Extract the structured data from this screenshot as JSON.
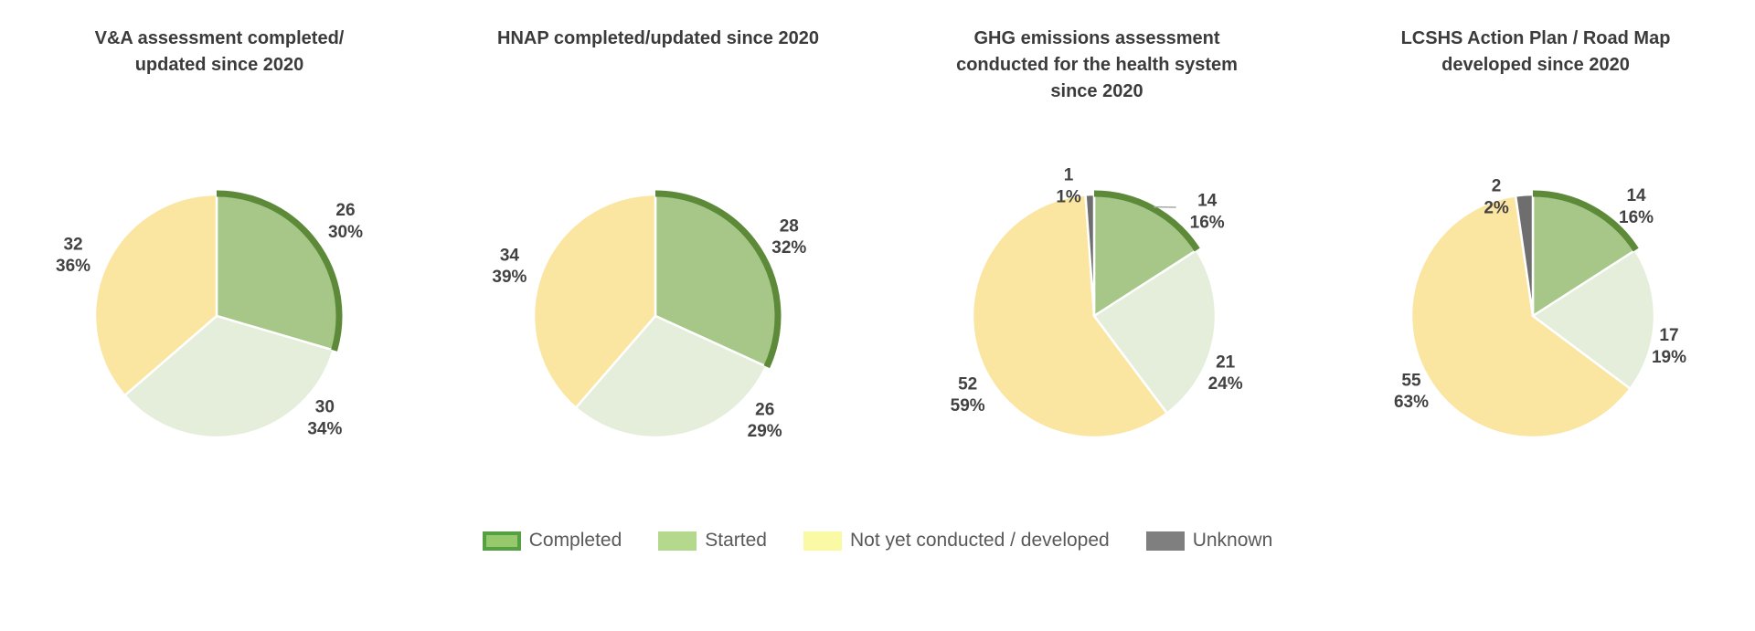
{
  "page": {
    "background_color": "#ffffff"
  },
  "colors": {
    "completed_fill": "#a6c787",
    "completed_arc_stroke": "#5d8a38",
    "started_fill": "#e4eeda",
    "notyet_fill": "#fae5a1",
    "unknown_fill": "#6e6e6e",
    "slice_separator": "#ffffff",
    "label_text": "#424242",
    "title_text": "#3b3b3b",
    "leader_line": "#a8a8a8"
  },
  "legend": {
    "items": [
      {
        "label": "Completed",
        "swatch_fill": "#96c96b",
        "swatch_border": "#55a042"
      },
      {
        "label": "Started",
        "swatch_fill": "#b5d98c"
      },
      {
        "label": "Not yet conducted / developed",
        "swatch_fill": "#fbfaa4"
      },
      {
        "label": "Unknown",
        "swatch_fill": "#7f7f7f"
      }
    ]
  },
  "chart_data": [
    {
      "type": "pie",
      "title": "V&A assessment completed/\nupdated since 2020",
      "start_angle_deg": 0,
      "direction": "clockwise",
      "slices": [
        {
          "category": "Completed",
          "key": "completed",
          "value": 26,
          "pct_label": "30%",
          "label_pos": [
            1.06,
            -0.8
          ],
          "highlight_arc": true
        },
        {
          "category": "Started",
          "key": "started",
          "value": 30,
          "pct_label": "34%",
          "label_pos": [
            0.89,
            0.82
          ]
        },
        {
          "category": "Not yet conducted / developed",
          "key": "notyet",
          "value": 32,
          "pct_label": "36%",
          "label_pos": [
            -1.18,
            -0.52
          ]
        }
      ]
    },
    {
      "type": "pie",
      "title": "HNAP completed/updated since 2020",
      "start_angle_deg": 0,
      "direction": "clockwise",
      "slices": [
        {
          "category": "Completed",
          "key": "completed",
          "value": 28,
          "pct_label": "32%",
          "label_pos": [
            1.1,
            -0.67
          ],
          "highlight_arc": true
        },
        {
          "category": "Started",
          "key": "started",
          "value": 26,
          "pct_label": "29%",
          "label_pos": [
            0.9,
            0.84
          ]
        },
        {
          "category": "Not yet conducted / developed",
          "key": "notyet",
          "value": 34,
          "pct_label": "39%",
          "label_pos": [
            -1.2,
            -0.43
          ]
        }
      ]
    },
    {
      "type": "pie",
      "title": "GHG emissions assessment\nconducted for the health system\nsince 2020",
      "start_angle_deg": 0,
      "direction": "clockwise",
      "slices": [
        {
          "category": "Completed",
          "key": "completed",
          "value": 14,
          "pct_label": "16%",
          "label_pos": [
            0.93,
            -0.88
          ],
          "highlight_arc": true,
          "leader_line": true
        },
        {
          "category": "Started",
          "key": "started",
          "value": 21,
          "pct_label": "24%",
          "label_pos": [
            1.08,
            0.45
          ]
        },
        {
          "category": "Not yet conducted / developed",
          "key": "notyet",
          "value": 52,
          "pct_label": "59%",
          "label_pos": [
            -1.04,
            0.63
          ]
        },
        {
          "category": "Unknown",
          "key": "unknown",
          "value": 1,
          "pct_label": "1%",
          "label_pos": [
            -0.21,
            -1.09
          ]
        }
      ]
    },
    {
      "type": "pie",
      "title": "LCSHS Action Plan / Road Map\ndeveloped since 2020",
      "start_angle_deg": 0,
      "direction": "clockwise",
      "slices": [
        {
          "category": "Completed",
          "key": "completed",
          "value": 14,
          "pct_label": "16%",
          "label_pos": [
            0.85,
            -0.92
          ],
          "highlight_arc": true
        },
        {
          "category": "Started",
          "key": "started",
          "value": 17,
          "pct_label": "19%",
          "label_pos": [
            1.12,
            0.23
          ]
        },
        {
          "category": "Not yet conducted / developed",
          "key": "notyet",
          "value": 55,
          "pct_label": "63%",
          "label_pos": [
            -1.0,
            0.6
          ]
        },
        {
          "category": "Unknown",
          "key": "unknown",
          "value": 2,
          "pct_label": "2%",
          "label_pos": [
            -0.3,
            -1.0
          ]
        }
      ]
    }
  ]
}
